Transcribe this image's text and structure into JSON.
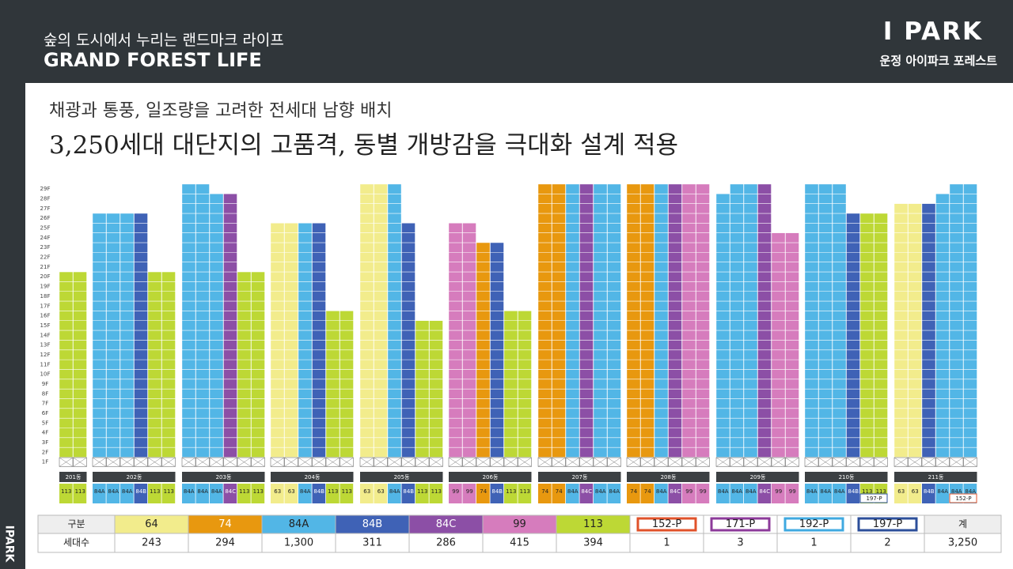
{
  "header": {
    "subtitle": "숲의 도시에서 누리는 랜드마크 라이프",
    "title": "GRAND FOREST LIFE",
    "logo": "I PARK",
    "logo_sub": "운정 아이파크 포레스트",
    "side_logo": "IPARK"
  },
  "headline": {
    "line1": "채광과 통풍, 일조량을 고려한 전세대 남향 배치",
    "line2": "3,250세대 대단지의 고품격, 동별 개방감을 극대화 설계 적용"
  },
  "palette": {
    "63": "#f2ec8c",
    "64": "#f2ec8c",
    "74": "#e8980f",
    "84A": "#52b6e6",
    "84B": "#3f62b6",
    "84C": "#8c4fa6",
    "99": "#d67cbd",
    "113": "#bdd835",
    "152-P": "#e0522a",
    "171-P": "#8c3a9a",
    "192-P": "#3fa9e0",
    "197-P": "#2c4f9a"
  },
  "floors": [
    "29F",
    "28F",
    "27F",
    "26F",
    "25F",
    "24F",
    "23F",
    "22F",
    "21F",
    "20F",
    "19F",
    "18F",
    "17F",
    "16F",
    "15F",
    "14F",
    "13F",
    "12F",
    "11F",
    "10F",
    "9F",
    "8F",
    "7F",
    "6F",
    "5F",
    "4F",
    "3F",
    "2F",
    "1F"
  ],
  "buildings": [
    {
      "name": "201동",
      "columns": [
        {
          "type": "113",
          "top": 20
        },
        {
          "type": "113",
          "top": 20
        }
      ]
    },
    {
      "name": "202동",
      "columns": [
        {
          "type": "84A",
          "top": 26
        },
        {
          "type": "84A",
          "top": 26
        },
        {
          "type": "84A",
          "top": 26
        },
        {
          "type": "84B",
          "top": 26
        },
        {
          "type": "113",
          "top": 20
        },
        {
          "type": "113",
          "top": 20
        }
      ]
    },
    {
      "name": "203동",
      "columns": [
        {
          "type": "84A",
          "top": 29
        },
        {
          "type": "84A",
          "top": 29
        },
        {
          "type": "84A",
          "top": 28
        },
        {
          "type": "84C",
          "top": 28
        },
        {
          "type": "113",
          "top": 20
        },
        {
          "type": "113",
          "top": 20
        }
      ]
    },
    {
      "name": "204동",
      "columns": [
        {
          "type": "63",
          "top": 25
        },
        {
          "type": "63",
          "top": 25
        },
        {
          "type": "84A",
          "top": 25
        },
        {
          "type": "84B",
          "top": 25
        },
        {
          "type": "113",
          "top": 16
        },
        {
          "type": "113",
          "top": 16
        }
      ]
    },
    {
      "name": "205동",
      "columns": [
        {
          "type": "63",
          "top": 29
        },
        {
          "type": "63",
          "top": 29
        },
        {
          "type": "84A",
          "top": 29
        },
        {
          "type": "84B",
          "top": 25
        },
        {
          "type": "113",
          "top": 15
        },
        {
          "type": "113",
          "top": 15
        }
      ]
    },
    {
      "name": "206동",
      "columns": [
        {
          "type": "99",
          "top": 25
        },
        {
          "type": "99",
          "top": 25
        },
        {
          "type": "74",
          "top": 23
        },
        {
          "type": "84B",
          "top": 23
        },
        {
          "type": "113",
          "top": 16
        },
        {
          "type": "113",
          "top": 16
        }
      ]
    },
    {
      "name": "207동",
      "columns": [
        {
          "type": "74",
          "top": 29
        },
        {
          "type": "74",
          "top": 29
        },
        {
          "type": "84A",
          "top": 29
        },
        {
          "type": "84C",
          "top": 29
        },
        {
          "type": "84A",
          "top": 29
        },
        {
          "type": "84A",
          "top": 29
        }
      ]
    },
    {
      "name": "208동",
      "columns": [
        {
          "type": "74",
          "top": 29
        },
        {
          "type": "74",
          "top": 29
        },
        {
          "type": "84A",
          "top": 29
        },
        {
          "type": "84C",
          "top": 29
        },
        {
          "type": "99",
          "top": 29
        },
        {
          "type": "99",
          "top": 29
        }
      ]
    },
    {
      "name": "209동",
      "columns": [
        {
          "type": "84A",
          "top": 28
        },
        {
          "type": "84A",
          "top": 29
        },
        {
          "type": "84A",
          "top": 29
        },
        {
          "type": "84C",
          "top": 29
        },
        {
          "type": "99",
          "top": 24
        },
        {
          "type": "99",
          "top": 24
        }
      ]
    },
    {
      "name": "210동",
      "extra": "197-P",
      "columns": [
        {
          "type": "84A",
          "top": 29
        },
        {
          "type": "84A",
          "top": 29
        },
        {
          "type": "84A",
          "top": 29
        },
        {
          "type": "84B",
          "top": 26
        },
        {
          "type": "113",
          "top": 26
        },
        {
          "type": "113",
          "top": 26
        }
      ]
    },
    {
      "name": "211동",
      "extra": "152-P",
      "columns": [
        {
          "type": "63",
          "top": 27
        },
        {
          "type": "63",
          "top": 27
        },
        {
          "type": "84B",
          "top": 27
        },
        {
          "type": "84A",
          "top": 28
        },
        {
          "type": "84A",
          "top": 29
        },
        {
          "type": "84A",
          "top": 29
        }
      ]
    }
  ],
  "table": {
    "row_header": "구분",
    "row_label": "세대수",
    "total_header": "계",
    "total": "3,250",
    "types": [
      {
        "label": "64",
        "count": "243"
      },
      {
        "label": "74",
        "count": "294"
      },
      {
        "label": "84A",
        "count": "1,300"
      },
      {
        "label": "84B",
        "count": "311"
      },
      {
        "label": "84C",
        "count": "286"
      },
      {
        "label": "99",
        "count": "415"
      },
      {
        "label": "113",
        "count": "394"
      },
      {
        "label": "152-P",
        "count": "1",
        "outline": true
      },
      {
        "label": "171-P",
        "count": "3",
        "outline": true
      },
      {
        "label": "192-P",
        "count": "1",
        "outline": true
      },
      {
        "label": "197-P",
        "count": "2",
        "outline": true
      }
    ]
  }
}
